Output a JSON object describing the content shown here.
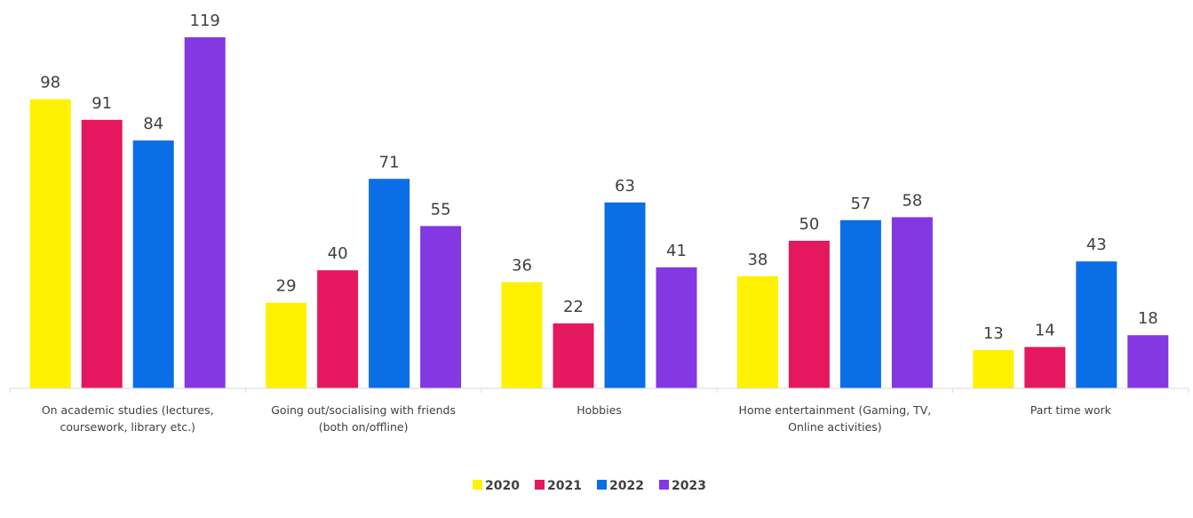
{
  "chart_data": {
    "type": "bar",
    "title": "",
    "xlabel": "",
    "ylabel": "",
    "ylim": [
      0,
      119
    ],
    "grid": false,
    "legend_position": "bottom",
    "categories": [
      [
        "On academic studies (lectures,",
        "coursework, library etc.)"
      ],
      [
        "Going out/socialising with friends",
        "(both on/offline)"
      ],
      [
        "Hobbies"
      ],
      [
        "Home entertainment (Gaming, TV,",
        "Online activities)"
      ],
      [
        "Part time work"
      ]
    ],
    "series": [
      {
        "name": "2020",
        "color": "#FFF200",
        "values": [
          98,
          29,
          36,
          38,
          13
        ]
      },
      {
        "name": "2021",
        "color": "#E5185F",
        "values": [
          91,
          40,
          22,
          50,
          14
        ]
      },
      {
        "name": "2022",
        "color": "#0A6EE6",
        "values": [
          84,
          71,
          63,
          57,
          43
        ]
      },
      {
        "name": "2023",
        "color": "#8338E2",
        "values": [
          119,
          55,
          41,
          58,
          18
        ]
      }
    ]
  }
}
